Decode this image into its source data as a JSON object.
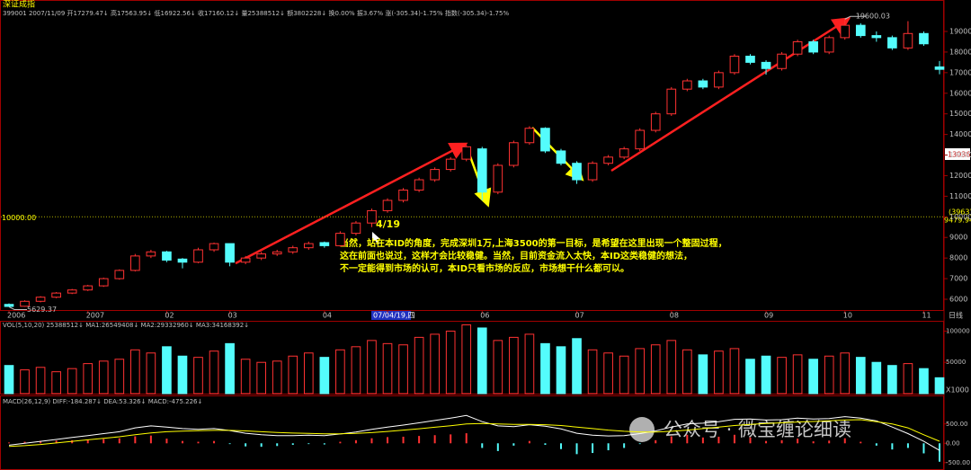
{
  "chart_data": [
    {
      "type": "candlestick",
      "title": "深证成指",
      "subtitle": "399001 2007/11/09 开17279.47↓ 高17563.95↓ 低16922.56↓ 收17160.12↓ 量25388512↓ 额3802228↓ 换0.00% 振3.67% 涨(-305.34)-1.75% 指数(-305.34)-1.75%",
      "period": "日线",
      "categories": [
        "2006",
        null,
        null,
        null,
        null,
        "2007",
        null,
        null,
        null,
        null,
        "02",
        null,
        null,
        null,
        "03",
        null,
        null,
        null,
        null,
        null,
        "04",
        null,
        null,
        null,
        "07/04/19,四",
        null,
        null,
        null,
        null,
        null,
        "06",
        null,
        null,
        null,
        null,
        null,
        "07",
        null,
        null,
        null,
        null,
        null,
        "08",
        null,
        null,
        null,
        null,
        null,
        "09",
        null,
        null,
        null,
        null,
        "10",
        null,
        null,
        null,
        null,
        "11",
        null
      ],
      "open": [
        5750,
        5660,
        5900,
        6100,
        6300,
        6450,
        6650,
        7000,
        7400,
        8100,
        8300,
        7950,
        7800,
        8400,
        8700,
        7800,
        8000,
        8200,
        8300,
        8500,
        8750,
        8600,
        9200,
        9700,
        10300,
        10800,
        11300,
        11800,
        12300,
        12800,
        13300,
        11200,
        12500,
        13600,
        14300,
        13200,
        12600,
        11800,
        12600,
        12900,
        13300,
        14200,
        15000,
        16200,
        16600,
        16300,
        17000,
        17800,
        17500,
        17200,
        17900,
        18500,
        18000,
        18700,
        19300,
        18800,
        18700,
        18200,
        18900,
        17279.47
      ],
      "high": [
        5800,
        5950,
        6150,
        6350,
        6500,
        6700,
        7050,
        7450,
        8200,
        8400,
        8350,
        8000,
        8500,
        8750,
        8700,
        8100,
        8300,
        8400,
        8600,
        8800,
        8800,
        9300,
        9800,
        10400,
        10900,
        11400,
        11900,
        12400,
        12900,
        13500,
        13400,
        12600,
        13700,
        14400,
        14350,
        13300,
        12700,
        12700,
        13000,
        13400,
        14300,
        15100,
        16300,
        16700,
        16700,
        17100,
        17900,
        17900,
        17600,
        18000,
        18600,
        18600,
        18800,
        19600.03,
        19400,
        19000,
        18800,
        19500,
        19000,
        17563.95
      ],
      "low": [
        5629.37,
        5640,
        5850,
        6050,
        6250,
        6400,
        6600,
        6950,
        7350,
        8000,
        7800,
        7500,
        7750,
        8300,
        7600,
        7700,
        7900,
        8100,
        8200,
        8400,
        8500,
        8550,
        9100,
        9500,
        10200,
        10700,
        11200,
        11700,
        12200,
        12700,
        10800,
        11100,
        12400,
        13500,
        13100,
        12500,
        11600,
        11700,
        12500,
        12800,
        13200,
        14100,
        14900,
        16100,
        16200,
        16200,
        16900,
        17400,
        16900,
        17100,
        17800,
        17900,
        17900,
        18600,
        18700,
        18500,
        18100,
        18100,
        18300,
        16922.56
      ],
      "close": [
        5650,
        5900,
        6100,
        6300,
        6450,
        6650,
        7000,
        7400,
        8100,
        8300,
        7900,
        7800,
        8400,
        8700,
        7800,
        8000,
        8200,
        8300,
        8500,
        8700,
        8600,
        9200,
        9700,
        10300,
        10800,
        11300,
        11800,
        12300,
        12800,
        13400,
        11200,
        12500,
        13600,
        14300,
        13200,
        12600,
        11800,
        12600,
        12900,
        13300,
        14200,
        15000,
        16200,
        16600,
        16300,
        17000,
        17800,
        17500,
        17200,
        17900,
        18500,
        18000,
        18700,
        19300,
        18800,
        18700,
        18200,
        18900,
        18400,
        17160.12
      ],
      "up_color": "#ff3232",
      "down_color": "#54fcfc",
      "ylim": [
        5476,
        20178
      ],
      "yticks": [
        6000,
        7000,
        8000,
        9000,
        10000,
        11000,
        12000,
        13000,
        14000,
        15000,
        16000,
        17000,
        18000,
        19000
      ],
      "ref_line": {
        "value": 10000,
        "label": "10000.00"
      },
      "right_labels": [
        "13036",
        "(3963)",
        "9479.94"
      ],
      "date_note": "4/19",
      "comment": [
        "当然，站在本ID的角度，完成深圳1万,上海3500的第一目标，是希望在这里出现一个整固过程，",
        "这在前面也说过，这样才会比较稳健。当然，目前资金流入太快，本ID这类稳健的想法，",
        "不一定能得到市场的认可，本ID只看市场的反应，市场想干什么都可以。"
      ]
    },
    {
      "type": "bar",
      "title": "VOL(5,10,20) 25388512↓ MA1:26549408↓ MA2:29332960↓ MA3:34168392↓",
      "values": [
        45000,
        38000,
        42000,
        35000,
        40000,
        48000,
        52000,
        55000,
        70000,
        65000,
        75000,
        60000,
        58000,
        68000,
        80000,
        55000,
        50000,
        52000,
        60000,
        65000,
        58000,
        70000,
        75000,
        85000,
        80000,
        78000,
        90000,
        95000,
        100000,
        110000,
        105000,
        85000,
        90000,
        95000,
        80000,
        75000,
        88000,
        70000,
        65000,
        60000,
        72000,
        78000,
        85000,
        70000,
        62000,
        68000,
        72000,
        55000,
        60000,
        58000,
        62000,
        55000,
        60000,
        65000,
        58000,
        50000,
        45000,
        48000,
        40000,
        25389
      ],
      "unit": "X1000",
      "ylim": [
        0,
        115000
      ],
      "yticks": [
        50000,
        100000
      ]
    },
    {
      "type": "macd",
      "title": "MACD(26,12,9) DIFF:-184.287↓ DEA:53.326↓ MACD:-475.226↓",
      "hist": [
        20,
        40,
        60,
        70,
        80,
        90,
        110,
        130,
        180,
        200,
        120,
        60,
        40,
        60,
        -20,
        -80,
        -90,
        -70,
        -40,
        -20,
        -30,
        40,
        80,
        130,
        160,
        170,
        190,
        210,
        230,
        260,
        -120,
        -200,
        -60,
        60,
        -40,
        -150,
        -280,
        -250,
        -180,
        -120,
        -20,
        80,
        180,
        220,
        150,
        170,
        220,
        150,
        60,
        80,
        120,
        50,
        70,
        130,
        40,
        -60,
        -160,
        -120,
        -260,
        -475.226
      ],
      "diff": [
        -50,
        0,
        50,
        100,
        150,
        200,
        250,
        300,
        400,
        450,
        420,
        380,
        360,
        380,
        330,
        260,
        220,
        200,
        200,
        210,
        200,
        240,
        290,
        360,
        420,
        470,
        530,
        590,
        650,
        720,
        560,
        450,
        430,
        480,
        440,
        370,
        260,
        210,
        190,
        200,
        250,
        320,
        420,
        500,
        520,
        560,
        620,
        630,
        600,
        610,
        650,
        630,
        640,
        690,
        650,
        580,
        420,
        250,
        50,
        -184.287
      ],
      "dea": [
        -80,
        -60,
        -30,
        10,
        50,
        90,
        130,
        170,
        220,
        270,
        300,
        315,
        325,
        335,
        335,
        320,
        300,
        280,
        265,
        255,
        245,
        245,
        255,
        275,
        305,
        340,
        375,
        415,
        455,
        500,
        510,
        500,
        490,
        490,
        480,
        460,
        420,
        380,
        340,
        310,
        290,
        290,
        310,
        340,
        380,
        420,
        460,
        490,
        510,
        530,
        550,
        565,
        580,
        600,
        610,
        560,
        500,
        400,
        220,
        53.326
      ],
      "diff_color": "#ffffff",
      "dea_color": "#ffff00",
      "ylim": [
        -690,
        1214
      ],
      "yticks": [
        {
          "value": -500,
          "label": "-500.00"
        },
        {
          "value": 0,
          "label": "0.00"
        },
        {
          "value": 500,
          "label": "500.00"
        }
      ]
    }
  ],
  "watermark": "公众号 · 微宝缠论细读"
}
